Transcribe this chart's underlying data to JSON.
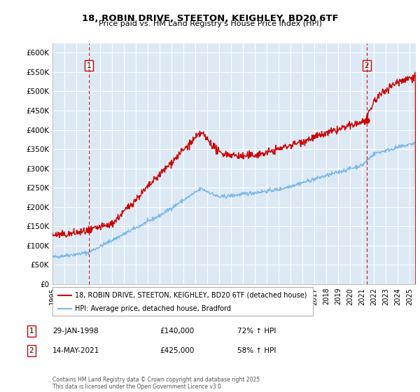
{
  "title_line1": "18, ROBIN DRIVE, STEETON, KEIGHLEY, BD20 6TF",
  "title_line2": "Price paid vs. HM Land Registry's House Price Index (HPI)",
  "legend_line1": "18, ROBIN DRIVE, STEETON, KEIGHLEY, BD20 6TF (detached house)",
  "legend_line2": "HPI: Average price, detached house, Bradford",
  "annotation1_label": "1",
  "annotation1_date": "29-JAN-1998",
  "annotation1_price": "£140,000",
  "annotation1_hpi": "72% ↑ HPI",
  "annotation2_label": "2",
  "annotation2_date": "14-MAY-2021",
  "annotation2_price": "£425,000",
  "annotation2_hpi": "58% ↑ HPI",
  "footer": "Contains HM Land Registry data © Crown copyright and database right 2025.\nThis data is licensed under the Open Government Licence v3.0.",
  "sale1_year": 1998.08,
  "sale1_price": 140000,
  "sale2_year": 2021.37,
  "sale2_price": 425000,
  "ylim_max": 625000,
  "ylim_min": 0,
  "xlim_min": 1995,
  "xlim_max": 2025.5,
  "bg_color": "#dce9f5",
  "line1_color": "#cc0000",
  "line2_color": "#7ab8e8",
  "vline_color": "#cc0000",
  "grid_color": "#ffffff",
  "box_color": "#cc0000"
}
